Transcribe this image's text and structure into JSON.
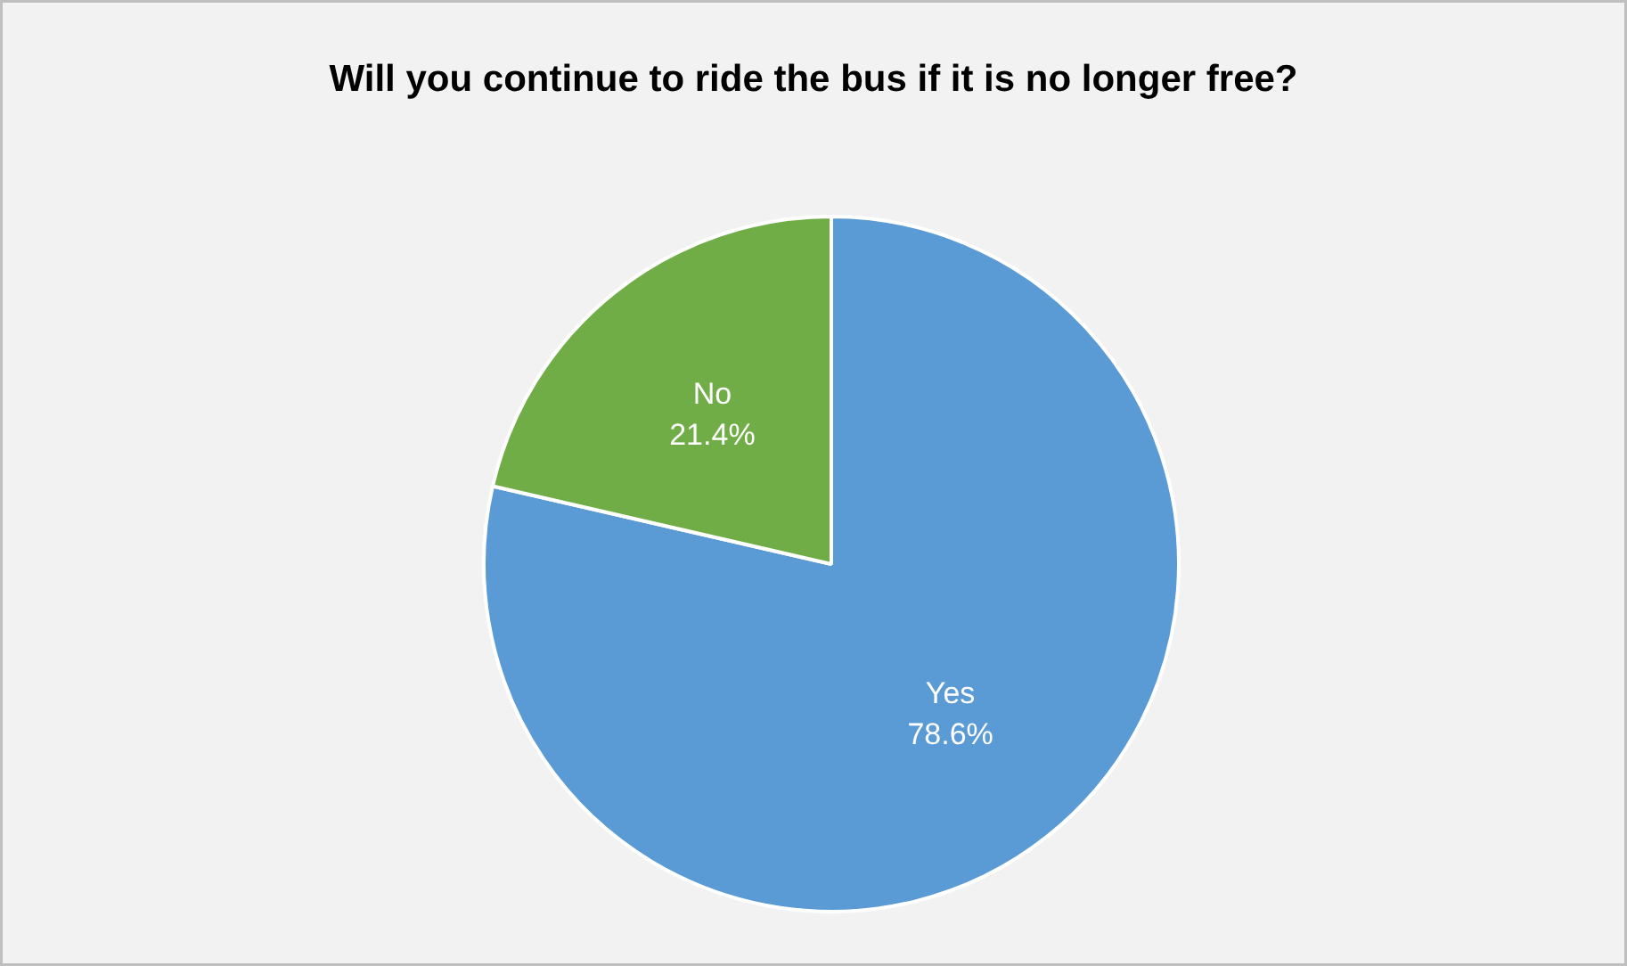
{
  "chart_data": {
    "type": "pie",
    "title": "Will you continue to ride the bus if it is no longer free?",
    "categories": [
      "Yes",
      "No"
    ],
    "values": [
      78.6,
      21.4
    ],
    "colors": [
      "#5b9bd5",
      "#70ad47"
    ],
    "value_labels": [
      "78.6%",
      "21.4%"
    ]
  }
}
